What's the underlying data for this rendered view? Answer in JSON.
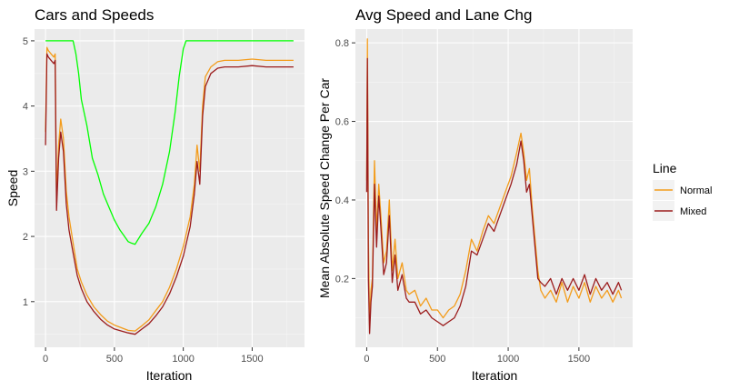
{
  "chart_data": [
    {
      "type": "line",
      "title": "Cars and Speeds",
      "xlabel": "Iteration",
      "ylabel": "Speed",
      "xlim": [
        -80,
        1880
      ],
      "ylim": [
        0.3,
        5.18
      ],
      "xticks": [
        0,
        500,
        1000,
        1500
      ],
      "yticks": [
        1,
        2,
        3,
        4,
        5
      ],
      "grid": true,
      "series": [
        {
          "color": "#00FF00",
          "x": [
            0,
            30,
            100,
            200,
            220,
            240,
            260,
            300,
            340,
            380,
            420,
            460,
            500,
            540,
            600,
            620,
            650,
            700,
            750,
            800,
            850,
            900,
            940,
            970,
            1000,
            1020,
            1100,
            1300,
            1500,
            1700,
            1800
          ],
          "y": [
            5.0,
            5.0,
            5.0,
            5.0,
            4.8,
            4.5,
            4.1,
            3.7,
            3.2,
            2.95,
            2.65,
            2.45,
            2.25,
            2.1,
            1.92,
            1.9,
            1.88,
            2.05,
            2.2,
            2.45,
            2.8,
            3.3,
            3.9,
            4.45,
            4.88,
            5.0,
            5.0,
            5.0,
            5.0,
            5.0,
            5.0
          ]
        },
        {
          "color": "#F39C1B",
          "x": [
            0,
            10,
            20,
            40,
            60,
            70,
            80,
            95,
            110,
            130,
            150,
            170,
            200,
            230,
            260,
            300,
            350,
            400,
            450,
            500,
            550,
            600,
            650,
            700,
            750,
            800,
            850,
            900,
            950,
            1000,
            1050,
            1080,
            1100,
            1120,
            1140,
            1160,
            1200,
            1250,
            1300,
            1400,
            1500,
            1600,
            1700,
            1800
          ],
          "y": [
            3.6,
            4.9,
            4.85,
            4.8,
            4.75,
            4.8,
            2.6,
            3.4,
            3.8,
            3.5,
            2.7,
            2.3,
            1.9,
            1.5,
            1.3,
            1.1,
            0.92,
            0.8,
            0.7,
            0.64,
            0.6,
            0.56,
            0.55,
            0.63,
            0.72,
            0.86,
            1.0,
            1.22,
            1.5,
            1.85,
            2.3,
            2.8,
            3.4,
            3.0,
            4.0,
            4.45,
            4.6,
            4.68,
            4.7,
            4.7,
            4.72,
            4.7,
            4.7,
            4.7
          ]
        },
        {
          "color": "#9B1C1C",
          "x": [
            0,
            10,
            20,
            40,
            60,
            70,
            80,
            95,
            110,
            130,
            150,
            170,
            200,
            230,
            260,
            300,
            350,
            400,
            450,
            500,
            550,
            600,
            650,
            700,
            750,
            800,
            850,
            900,
            950,
            1000,
            1050,
            1080,
            1100,
            1120,
            1140,
            1160,
            1200,
            1250,
            1300,
            1400,
            1500,
            1600,
            1700,
            1800
          ],
          "y": [
            3.4,
            4.8,
            4.75,
            4.7,
            4.65,
            4.7,
            2.4,
            3.2,
            3.6,
            3.3,
            2.5,
            2.1,
            1.75,
            1.4,
            1.2,
            1.0,
            0.85,
            0.73,
            0.64,
            0.58,
            0.55,
            0.52,
            0.5,
            0.58,
            0.66,
            0.78,
            0.92,
            1.12,
            1.38,
            1.7,
            2.15,
            2.65,
            3.15,
            2.8,
            3.85,
            4.3,
            4.5,
            4.58,
            4.6,
            4.6,
            4.62,
            4.6,
            4.6,
            4.6
          ]
        }
      ]
    },
    {
      "type": "line",
      "title": "Avg Speed and Lane Chg",
      "xlabel": "Iteration",
      "ylabel": "Mean Absolute Speed Change Per Car",
      "xlim": [
        -80,
        1880
      ],
      "ylim": [
        0.025,
        0.835
      ],
      "xticks": [
        0,
        500,
        1000,
        1500
      ],
      "yticks": [
        0.2,
        0.4,
        0.6,
        0.8
      ],
      "grid": true,
      "series": [
        {
          "name": "Normal",
          "color": "#F39C1B",
          "x": [
            0,
            5,
            12,
            20,
            30,
            40,
            55,
            70,
            85,
            100,
            120,
            140,
            160,
            180,
            200,
            220,
            250,
            280,
            300,
            340,
            380,
            420,
            460,
            500,
            540,
            580,
            620,
            660,
            700,
            740,
            780,
            820,
            860,
            900,
            940,
            980,
            1020,
            1060,
            1090,
            1110,
            1130,
            1150,
            1170,
            1190,
            1210,
            1230,
            1260,
            1300,
            1340,
            1380,
            1420,
            1460,
            1500,
            1540,
            1580,
            1620,
            1660,
            1700,
            1740,
            1780,
            1800
          ],
          "y": [
            0.45,
            0.81,
            0.3,
            0.08,
            0.17,
            0.2,
            0.5,
            0.32,
            0.44,
            0.36,
            0.24,
            0.27,
            0.4,
            0.22,
            0.3,
            0.2,
            0.24,
            0.17,
            0.16,
            0.17,
            0.13,
            0.15,
            0.12,
            0.12,
            0.1,
            0.12,
            0.13,
            0.16,
            0.22,
            0.3,
            0.27,
            0.32,
            0.36,
            0.34,
            0.38,
            0.42,
            0.46,
            0.52,
            0.57,
            0.52,
            0.45,
            0.48,
            0.38,
            0.3,
            0.22,
            0.17,
            0.15,
            0.17,
            0.14,
            0.19,
            0.14,
            0.18,
            0.15,
            0.19,
            0.14,
            0.18,
            0.15,
            0.17,
            0.14,
            0.17,
            0.15
          ]
        },
        {
          "name": "Mixed",
          "color": "#9B1C1C",
          "x": [
            0,
            5,
            12,
            20,
            30,
            40,
            55,
            70,
            85,
            100,
            120,
            140,
            160,
            180,
            200,
            220,
            250,
            280,
            300,
            340,
            380,
            420,
            460,
            500,
            540,
            580,
            620,
            660,
            700,
            740,
            780,
            820,
            860,
            900,
            940,
            980,
            1020,
            1060,
            1090,
            1110,
            1130,
            1150,
            1170,
            1190,
            1210,
            1230,
            1260,
            1300,
            1340,
            1380,
            1420,
            1460,
            1500,
            1540,
            1580,
            1620,
            1660,
            1700,
            1740,
            1780,
            1800
          ],
          "y": [
            0.42,
            0.76,
            0.2,
            0.06,
            0.14,
            0.18,
            0.44,
            0.28,
            0.41,
            0.33,
            0.21,
            0.24,
            0.36,
            0.19,
            0.26,
            0.17,
            0.21,
            0.15,
            0.14,
            0.14,
            0.11,
            0.12,
            0.1,
            0.09,
            0.08,
            0.09,
            0.1,
            0.13,
            0.18,
            0.27,
            0.26,
            0.3,
            0.34,
            0.32,
            0.36,
            0.4,
            0.44,
            0.49,
            0.55,
            0.5,
            0.42,
            0.44,
            0.36,
            0.28,
            0.2,
            0.19,
            0.18,
            0.2,
            0.16,
            0.2,
            0.17,
            0.2,
            0.17,
            0.21,
            0.16,
            0.2,
            0.17,
            0.19,
            0.16,
            0.19,
            0.17
          ]
        }
      ]
    }
  ],
  "legend": {
    "title": "Line",
    "items": [
      {
        "label": "Normal",
        "color": "#F39C1B"
      },
      {
        "label": "Mixed",
        "color": "#9B1C1C"
      }
    ]
  }
}
